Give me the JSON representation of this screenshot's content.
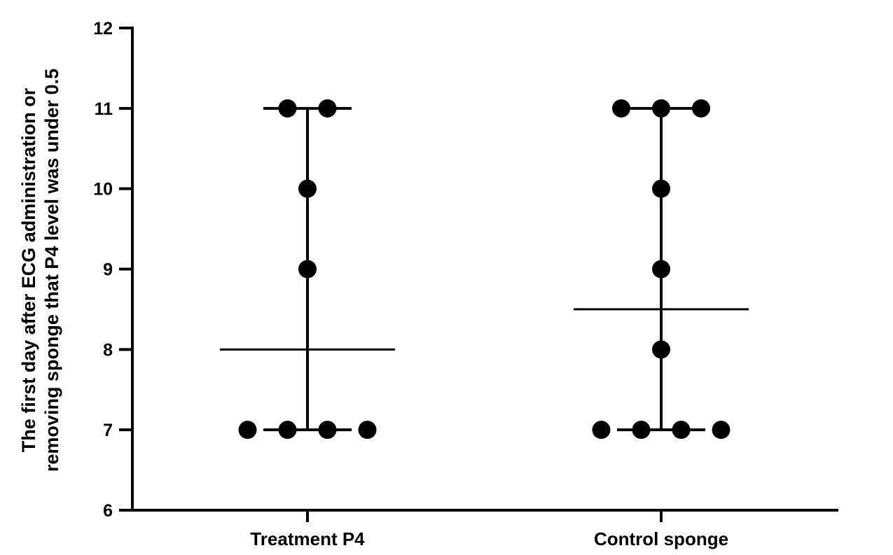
{
  "chart_data": {
    "type": "scatter",
    "ylabel_lines": [
      "The first day after ECG administration or",
      "removing sponge that P4 level was under 0.5"
    ],
    "xlabel": "",
    "ylim": [
      6,
      12
    ],
    "yticks": [
      6,
      7,
      8,
      9,
      10,
      11,
      12
    ],
    "categories": [
      "Treatment P4",
      "Control sponge"
    ],
    "groups": [
      {
        "name": "Treatment P4",
        "points": [
          11,
          11,
          10,
          9,
          7,
          7,
          7,
          7
        ],
        "median": 8,
        "range": [
          7,
          11
        ]
      },
      {
        "name": "Control sponge",
        "points": [
          11,
          11,
          11,
          10,
          9,
          8,
          7,
          7,
          7,
          7
        ],
        "median": 8.5,
        "range": [
          7,
          11
        ]
      }
    ],
    "marker_color": "#000000",
    "grid": false,
    "legend": "none"
  }
}
